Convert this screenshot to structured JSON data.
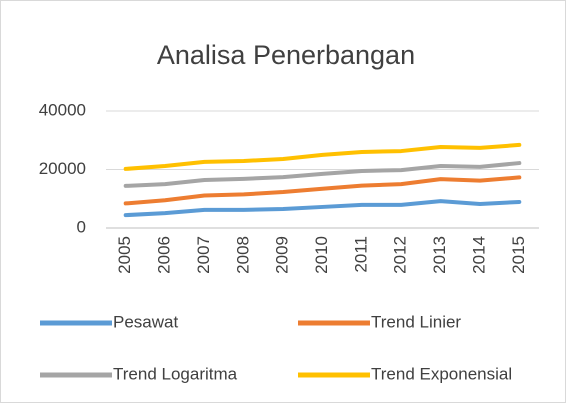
{
  "chart_data": {
    "type": "stacked-line",
    "title": "Analisa Penerbangan",
    "categories": [
      "2005",
      "2006",
      "2007",
      "2008",
      "2009",
      "2010",
      "2011",
      "2012",
      "2013",
      "2014",
      "2015"
    ],
    "series": [
      {
        "name": "Pesawat",
        "color": "#5b9bd5",
        "values": [
          4400,
          5100,
          6200,
          6200,
          6500,
          7200,
          7900,
          7900,
          9200,
          8200,
          8900
        ]
      },
      {
        "name": "Trend Linier",
        "color": "#ed7d31",
        "values": [
          4000,
          4400,
          4900,
          5300,
          5800,
          6200,
          6600,
          7100,
          7500,
          8000,
          8400
        ]
      },
      {
        "name": "Trend Logaritma",
        "color": "#a5a5a5",
        "values": [
          6000,
          5500,
          5300,
          5300,
          5100,
          5100,
          5000,
          4800,
          4500,
          4700,
          4900
        ]
      },
      {
        "name": "Trend Exponensial",
        "color": "#ffc000",
        "values": [
          5800,
          6200,
          6200,
          6100,
          6200,
          6500,
          6500,
          6500,
          6500,
          6500,
          6200
        ]
      }
    ],
    "ylim": [
      0,
      40000
    ],
    "yticks": [
      0,
      20000,
      40000
    ],
    "grid": true,
    "stacked": true
  }
}
